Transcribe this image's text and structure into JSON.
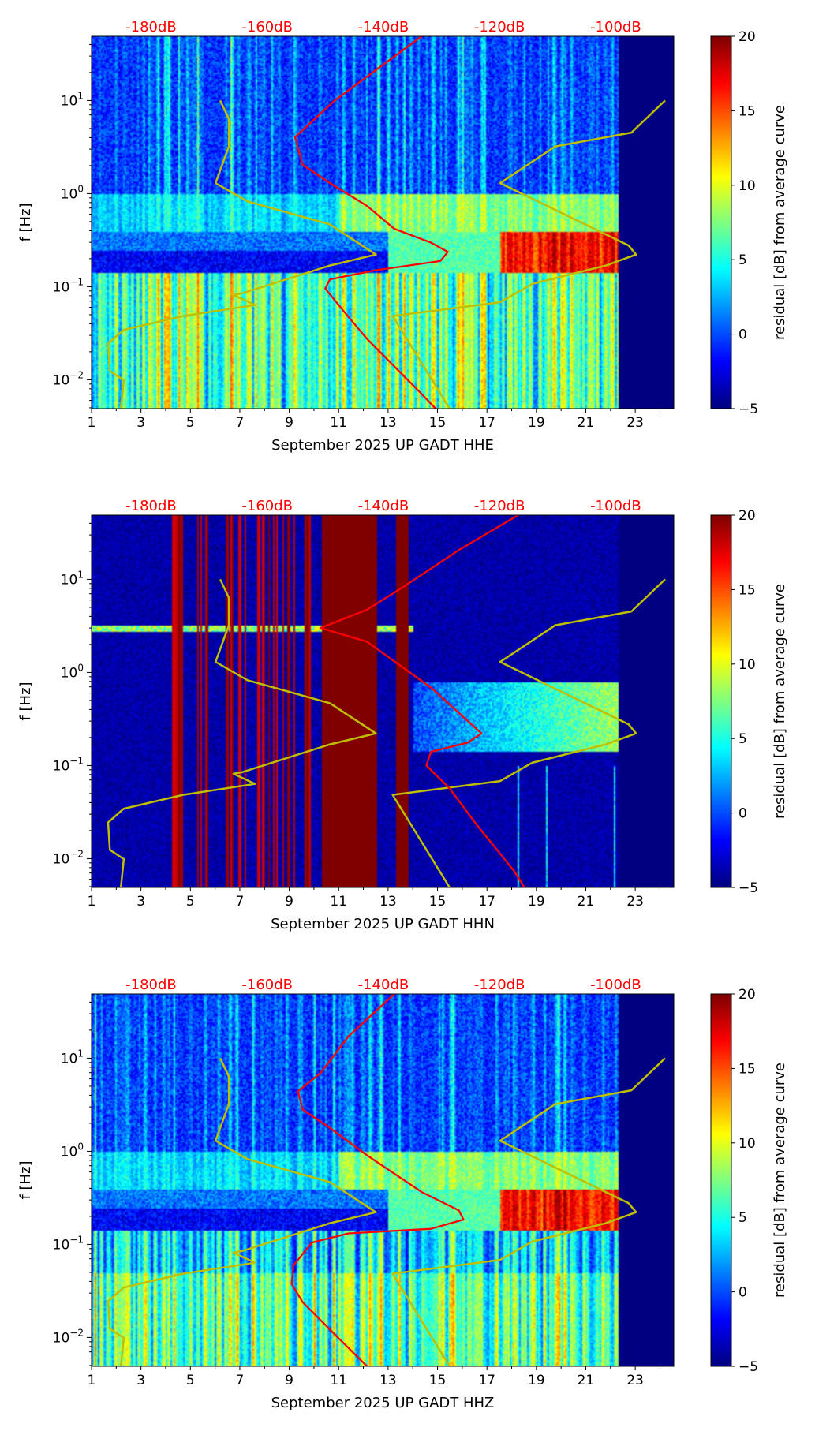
{
  "chart_data": [
    {
      "type": "heatmap",
      "title": "",
      "xlabel": "September 2025 UP GADT  HHE",
      "ylabel": "f [Hz]",
      "xlim": [
        1,
        24.56
      ],
      "ylim_hz": [
        0.005,
        49
      ],
      "yscale": "log",
      "x_ticks": [
        "1",
        "3",
        "5",
        "7",
        "9",
        "11",
        "13",
        "15",
        "17",
        "19",
        "21",
        "23"
      ],
      "y_ticks": [
        {
          "exp": "−2",
          "v": -2
        },
        {
          "exp": "−1",
          "v": -1
        },
        {
          "exp": "0",
          "v": 0
        },
        {
          "exp": "1",
          "v": 1
        }
      ],
      "db_axis": {
        "labels": [
          "-180dB",
          "-160dB",
          "-140dB",
          "-120dB",
          "-100dB"
        ],
        "db_values": [
          -180,
          -160,
          -140,
          -120,
          -100
        ],
        "day_at_-180": 3.41,
        "days_per_20dB": 4.7
      },
      "colorbar": {
        "label": "residual [dB] from average curve",
        "range": [
          -5,
          20
        ],
        "ticks": [
          "−5",
          "0",
          "5",
          "10",
          "15",
          "20"
        ]
      },
      "data_end_day": 22.3,
      "series": [
        {
          "name": "average PSD",
          "color": "#ff0000",
          "points_db_log10f": [
            [
              -133.4,
              1.69
            ],
            [
              -148.4,
              1.0
            ],
            [
              -155.2,
              0.606
            ],
            [
              -153.9,
              0.31
            ],
            [
              -149.2,
              0.113
            ],
            [
              -142.8,
              -0.133
            ],
            [
              -138.1,
              -0.379
            ],
            [
              -131.8,
              -0.527
            ],
            [
              -128.9,
              -0.626
            ],
            [
              -130.2,
              -0.724
            ],
            [
              -141.3,
              -0.823
            ],
            [
              -149.2,
              -0.921
            ],
            [
              -150.0,
              -1.02
            ],
            [
              -146.8,
              -1.266
            ],
            [
              -142.8,
              -1.562
            ],
            [
              -138.1,
              -1.857
            ],
            [
              -133.4,
              -2.153
            ],
            [
              -131.0,
              -2.31
            ]
          ]
        }
      ]
    },
    {
      "type": "heatmap",
      "xlabel": "September 2025 UP GADT  HHN",
      "ylabel": "f [Hz]",
      "xlim": [
        1,
        24.56
      ],
      "x_ticks": [
        "1",
        "3",
        "5",
        "7",
        "9",
        "11",
        "13",
        "15",
        "17",
        "19",
        "21",
        "23"
      ],
      "db_axis": {
        "labels": [
          "-180dB",
          "-160dB",
          "-140dB",
          "-120dB",
          "-100dB"
        ]
      },
      "colorbar": {
        "label": "residual [dB] from average curve",
        "ticks": [
          "−5",
          "0",
          "5",
          "10",
          "15",
          "20"
        ]
      },
      "series": [
        {
          "name": "average PSD",
          "color": "#ff0000",
          "points_db_log10f": [
            [
              -116.8,
              1.69
            ],
            [
              -127.0,
              1.315
            ],
            [
              -136.5,
              0.921
            ],
            [
              -142.8,
              0.675
            ],
            [
              -150.8,
              0.478
            ],
            [
              -142.8,
              0.33
            ],
            [
              -131.8,
              -0.163
            ],
            [
              -123.1,
              -0.655
            ],
            [
              -125.5,
              -0.754
            ],
            [
              -131.8,
              -0.852
            ],
            [
              -132.6,
              -1.0
            ],
            [
              -128.6,
              -1.246
            ],
            [
              -123.9,
              -1.64
            ],
            [
              -117.5,
              -2.133
            ],
            [
              -115.7,
              -2.31
            ]
          ]
        }
      ]
    },
    {
      "type": "heatmap",
      "xlabel": "September 2025 UP GADT  HHZ",
      "ylabel": "f [Hz]",
      "xlim": [
        1,
        24.56
      ],
      "x_ticks": [
        "1",
        "3",
        "5",
        "7",
        "9",
        "11",
        "13",
        "15",
        "17",
        "19",
        "21",
        "23"
      ],
      "db_axis": {
        "labels": [
          "-180dB",
          "-160dB",
          "-140dB",
          "-120dB",
          "-100dB"
        ]
      },
      "colorbar": {
        "label": "residual [dB] from average curve",
        "ticks": [
          "−5",
          "0",
          "5",
          "10",
          "15",
          "20"
        ]
      },
      "series": [
        {
          "name": "average PSD",
          "color": "#ff0000",
          "points_db_log10f": [
            [
              -138.1,
              1.69
            ],
            [
              -146.0,
              1.236
            ],
            [
              -150.8,
              0.842
            ],
            [
              -154.7,
              0.645
            ],
            [
              -153.9,
              0.448
            ],
            [
              -149.2,
              0.251
            ],
            [
              -142.8,
              -0.044
            ],
            [
              -133.4,
              -0.438
            ],
            [
              -127.0,
              -0.635
            ],
            [
              -126.2,
              -0.734
            ],
            [
              -131.8,
              -0.833
            ],
            [
              -146.0,
              -0.882
            ],
            [
              -152.3,
              -0.98
            ],
            [
              -155.5,
              -1.227
            ],
            [
              -155.8,
              -1.424
            ],
            [
              -153.9,
              -1.621
            ],
            [
              -147.6,
              -2.015
            ],
            [
              -142.8,
              -2.31
            ]
          ]
        }
      ]
    }
  ],
  "noise_models": {
    "color": "#bfbf00",
    "nlnm": [
      [
        -168.1,
        1.0
      ],
      [
        -166.6,
        0.803
      ],
      [
        -166.6,
        0.507
      ],
      [
        -168.9,
        0.113
      ],
      [
        -163.4,
        -0.084
      ],
      [
        -149.2,
        -0.33
      ],
      [
        -141.3,
        -0.655
      ],
      [
        -149.2,
        -0.773
      ],
      [
        -164.2,
        -1.069
      ],
      [
        -165.8,
        -1.089
      ],
      [
        -162.1,
        -1.197
      ],
      [
        -174.5,
        -1.315
      ],
      [
        -184.7,
        -1.463
      ],
      [
        -187.4,
        -1.611
      ],
      [
        -187.1,
        -1.906
      ],
      [
        -184.7,
        -2.005
      ],
      [
        -185.2,
        -2.31
      ]
    ],
    "nhnm": [
      [
        -91.5,
        1.0
      ],
      [
        -97.3,
        0.655
      ],
      [
        -110.4,
        0.507
      ],
      [
        -119.9,
        0.113
      ],
      [
        -97.8,
        -0.557
      ],
      [
        -96.5,
        -0.655
      ],
      [
        -101.7,
        -0.773
      ],
      [
        -114.4,
        -0.97
      ],
      [
        -119.9,
        -1.167
      ],
      [
        -138.4,
        -1.315
      ],
      [
        -128.6,
        -2.31
      ]
    ]
  }
}
